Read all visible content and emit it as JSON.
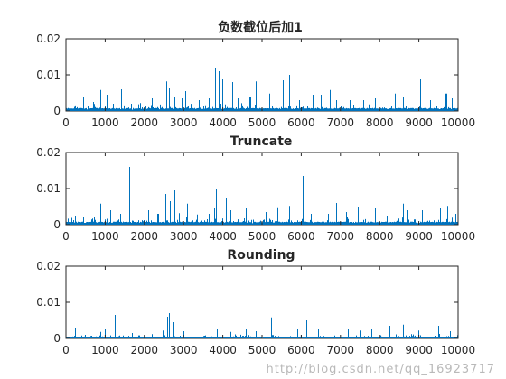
{
  "figure": {
    "watermark": "http://blog.csdn.net/qq_16923717"
  },
  "colors": {
    "series": "#0072BD",
    "axis": "#262626"
  },
  "chart_data": [
    {
      "type": "line",
      "title": "负数截位后加1",
      "xlabel": "",
      "ylabel": "",
      "xlim": [
        0,
        10000
      ],
      "ylim": [
        0,
        0.02
      ],
      "xticks": [
        "0",
        "1000",
        "2000",
        "3000",
        "4000",
        "5000",
        "6000",
        "7000",
        "8000",
        "9000",
        "10000"
      ],
      "yticks": [
        "0",
        "0.01",
        "0.02"
      ],
      "grid": false,
      "baseline_noise": 0.0008,
      "spikes": [
        [
          450,
          0.004
        ],
        [
          700,
          0.0025
        ],
        [
          880,
          0.0058
        ],
        [
          1050,
          0.0045
        ],
        [
          1200,
          0.002
        ],
        [
          1420,
          0.006
        ],
        [
          1680,
          0.002
        ],
        [
          1900,
          0.0022
        ],
        [
          2200,
          0.0035
        ],
        [
          2560,
          0.0082
        ],
        [
          2640,
          0.0065
        ],
        [
          2780,
          0.004
        ],
        [
          2950,
          0.0035
        ],
        [
          3050,
          0.0055
        ],
        [
          3400,
          0.003
        ],
        [
          3650,
          0.0035
        ],
        [
          3820,
          0.012
        ],
        [
          3900,
          0.011
        ],
        [
          4000,
          0.009
        ],
        [
          4250,
          0.008
        ],
        [
          4400,
          0.0035
        ],
        [
          4700,
          0.004
        ],
        [
          4850,
          0.0082
        ],
        [
          5200,
          0.0048
        ],
        [
          5550,
          0.0085
        ],
        [
          5700,
          0.01
        ],
        [
          5950,
          0.003
        ],
        [
          6300,
          0.0045
        ],
        [
          6500,
          0.0045
        ],
        [
          6750,
          0.0058
        ],
        [
          6900,
          0.003
        ],
        [
          7250,
          0.003
        ],
        [
          7600,
          0.003
        ],
        [
          7900,
          0.0035
        ],
        [
          8400,
          0.0048
        ],
        [
          8600,
          0.0038
        ],
        [
          9050,
          0.0088
        ],
        [
          9300,
          0.003
        ],
        [
          9700,
          0.0048
        ],
        [
          9860,
          0.0035
        ]
      ]
    },
    {
      "type": "line",
      "title": "Truncate",
      "xlabel": "",
      "ylabel": "",
      "xlim": [
        0,
        10000
      ],
      "ylim": [
        0,
        0.02
      ],
      "xticks": [
        "0",
        "1000",
        "2000",
        "3000",
        "4000",
        "5000",
        "6000",
        "7000",
        "8000",
        "9000",
        "10000"
      ],
      "yticks": [
        "0",
        "0.01",
        "0.02"
      ],
      "grid": false,
      "baseline_noise": 0.0008,
      "spikes": [
        [
          250,
          0.0025
        ],
        [
          450,
          0.002
        ],
        [
          880,
          0.0058
        ],
        [
          1150,
          0.004
        ],
        [
          1300,
          0.0045
        ],
        [
          1400,
          0.003
        ],
        [
          1620,
          0.016
        ],
        [
          2100,
          0.004
        ],
        [
          2350,
          0.003
        ],
        [
          2550,
          0.0085
        ],
        [
          2650,
          0.0065
        ],
        [
          2780,
          0.0095
        ],
        [
          2900,
          0.0032
        ],
        [
          3100,
          0.0058
        ],
        [
          3350,
          0.0028
        ],
        [
          3650,
          0.003
        ],
        [
          3800,
          0.0045
        ],
        [
          3840,
          0.0098
        ],
        [
          4100,
          0.0075
        ],
        [
          4200,
          0.004
        ],
        [
          4600,
          0.0045
        ],
        [
          4900,
          0.0045
        ],
        [
          5100,
          0.0035
        ],
        [
          5400,
          0.0048
        ],
        [
          5700,
          0.0052
        ],
        [
          5850,
          0.003
        ],
        [
          6050,
          0.0135
        ],
        [
          6250,
          0.003
        ],
        [
          6550,
          0.004
        ],
        [
          6700,
          0.003
        ],
        [
          6900,
          0.006
        ],
        [
          7150,
          0.0035
        ],
        [
          7450,
          0.005
        ],
        [
          7900,
          0.0045
        ],
        [
          8200,
          0.0025
        ],
        [
          8600,
          0.0058
        ],
        [
          8700,
          0.004
        ],
        [
          9100,
          0.004
        ],
        [
          9550,
          0.0045
        ],
        [
          9730,
          0.0052
        ],
        [
          9950,
          0.003
        ]
      ]
    },
    {
      "type": "line",
      "title": "Rounding",
      "xlabel": "",
      "ylabel": "",
      "xlim": [
        0,
        10000
      ],
      "ylim": [
        0,
        0.02
      ],
      "xticks": [
        "0",
        "1000",
        "2000",
        "3000",
        "4000",
        "5000",
        "6000",
        "7000",
        "8000",
        "9000",
        "10000"
      ],
      "yticks": [
        "0",
        "0.01",
        "0.02"
      ],
      "grid": false,
      "baseline_noise": 0.0005,
      "spikes": [
        [
          250,
          0.0028
        ],
        [
          500,
          0.001
        ],
        [
          880,
          0.0018
        ],
        [
          1000,
          0.0025
        ],
        [
          1250,
          0.0065
        ],
        [
          1700,
          0.0015
        ],
        [
          2200,
          0.0012
        ],
        [
          2480,
          0.0022
        ],
        [
          2600,
          0.006
        ],
        [
          2640,
          0.007
        ],
        [
          2750,
          0.0045
        ],
        [
          3000,
          0.002
        ],
        [
          3450,
          0.0015
        ],
        [
          3850,
          0.0025
        ],
        [
          4200,
          0.0018
        ],
        [
          4600,
          0.0025
        ],
        [
          4850,
          0.002
        ],
        [
          5250,
          0.0058
        ],
        [
          5600,
          0.0035
        ],
        [
          5900,
          0.0025
        ],
        [
          6150,
          0.005
        ],
        [
          6450,
          0.0025
        ],
        [
          6800,
          0.0025
        ],
        [
          7200,
          0.0025
        ],
        [
          7500,
          0.0022
        ],
        [
          7800,
          0.0025
        ],
        [
          8250,
          0.0035
        ],
        [
          8600,
          0.0038
        ],
        [
          9000,
          0.0022
        ],
        [
          9500,
          0.0035
        ],
        [
          9800,
          0.002
        ]
      ]
    }
  ]
}
